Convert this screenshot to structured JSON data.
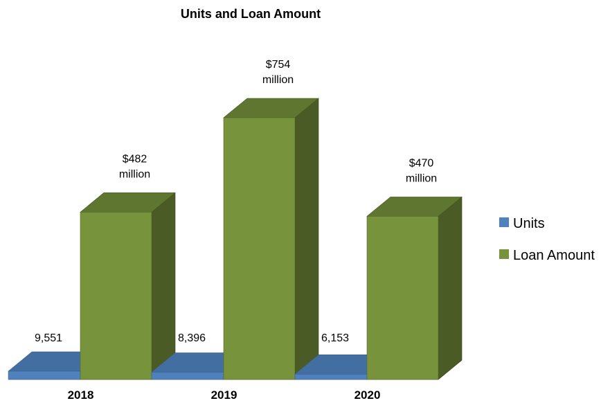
{
  "chart_data": {
    "type": "bar",
    "title": "Units and Loan Amount",
    "categories": [
      "2018",
      "2019",
      "2020"
    ],
    "series": [
      {
        "name": "Units",
        "values": [
          9551,
          8396,
          6153
        ],
        "labels": [
          "9,551",
          "8,396",
          "6,153"
        ],
        "color": "#4F81BD"
      },
      {
        "name": "Loan Amount",
        "values": [
          482,
          754,
          470
        ],
        "labels": [
          [
            "$482",
            "million"
          ],
          [
            "$754",
            "million"
          ],
          [
            "$470",
            "million"
          ]
        ],
        "color": "#77933C"
      }
    ],
    "legend_position": "right",
    "grid": false
  }
}
